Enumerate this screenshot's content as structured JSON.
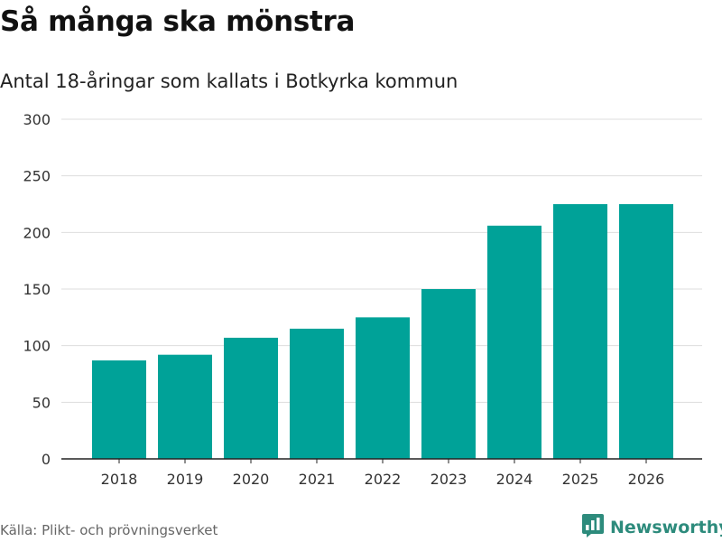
{
  "header": {
    "title": "Så många ska mönstra",
    "subtitle": "Antal 18-åringar som kallats i Botkyrka kommun"
  },
  "footer": {
    "source": "Källa: Plikt- och prövningsverket",
    "brand": "Newsworthy",
    "brand_icon": "bar-chart-speech-bubble-icon"
  },
  "colors": {
    "bar": "#00a298",
    "grid": "#dddddd",
    "axis": "#222222",
    "brand": "#2d8b7c"
  },
  "chart_data": {
    "type": "bar",
    "title": "Så många ska mönstra",
    "subtitle": "Antal 18-åringar som kallats i Botkyrka kommun",
    "xlabel": "",
    "ylabel": "",
    "categories": [
      "2018",
      "2019",
      "2020",
      "2021",
      "2022",
      "2023",
      "2024",
      "2025",
      "2026"
    ],
    "values": [
      87,
      92,
      107,
      115,
      125,
      150,
      206,
      225,
      225
    ],
    "ylim": [
      0,
      300
    ],
    "yticks": [
      0,
      50,
      100,
      150,
      200,
      250,
      300
    ],
    "grid": true
  }
}
